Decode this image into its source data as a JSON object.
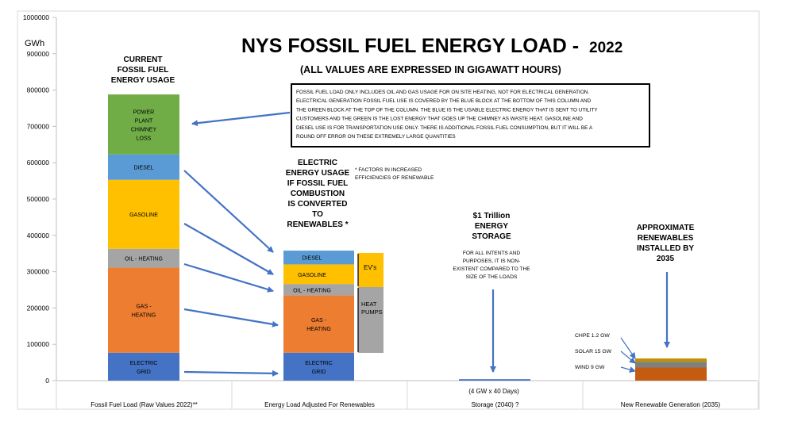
{
  "chart_data": {
    "type": "bar",
    "title": "NYS FOSSIL FUEL ENERGY LOAD -",
    "title_year": "2022",
    "subtitle": "(ALL VALUES ARE EXPRESSED IN GIGAWATT HOURS)",
    "ylabel": "GWh",
    "ylim": [
      0,
      1000000
    ],
    "yticks": [
      "0",
      "100000",
      "200000",
      "300000",
      "400000",
      "500000",
      "600000",
      "700000",
      "800000",
      "900000",
      "1000000"
    ],
    "grid": false,
    "categories": [
      "Fossil Fuel Load (Raw Values 2022)**",
      "Energy Load Adjusted For Renewables",
      "Storage (2040) ?",
      "New Renewable Generation (2035)"
    ],
    "category_note": "(4 GW x 40 Days)",
    "series": [
      {
        "name": "ELECTRIC GRID",
        "color": "#4472c4",
        "values": [
          77000,
          77000,
          null,
          null
        ]
      },
      {
        "name": "GAS - HEATING",
        "color": "#ed7d31",
        "values": [
          234000,
          158000,
          null,
          null
        ]
      },
      {
        "name": "OIL - HEATING",
        "color": "#a5a5a5",
        "values": [
          52000,
          31000,
          null,
          null
        ]
      },
      {
        "name": "GASOLINE",
        "color": "#ffc000",
        "values": [
          190000,
          54000,
          null,
          null
        ]
      },
      {
        "name": "DIESEL",
        "color": "#5b9bd5",
        "values": [
          70000,
          38000,
          null,
          null
        ]
      },
      {
        "name": "POWER PLANT CHIMNEY LOSS",
        "color": "#70ad47",
        "values": [
          165000,
          null,
          null,
          null
        ]
      },
      {
        "name": "Storage",
        "color": "#4472c4",
        "values": [
          null,
          null,
          4000,
          null
        ]
      },
      {
        "name": "WIND 9 GW",
        "color": "#c55a11",
        "values": [
          null,
          null,
          null,
          36000
        ]
      },
      {
        "name": "SOLAR 15 GW",
        "color": "#7f7f7f",
        "values": [
          null,
          null,
          null,
          16000
        ]
      },
      {
        "name": "CHPE 1.2 GW",
        "color": "#bf9000",
        "values": [
          null,
          null,
          null,
          9000
        ]
      }
    ],
    "segment_labels": {
      "electric": [
        "ELECTRIC",
        "GRID"
      ],
      "gas": [
        "GAS -",
        "HEATING"
      ],
      "oil": "OIL - HEATING",
      "gasoline": "GASOLINE",
      "diesel": "DIESEL",
      "chimney": [
        "POWER",
        "PLANT",
        "CHIMNEY",
        "LOSS"
      ]
    },
    "annotations": {
      "current_usage": [
        "CURRENT",
        "FOSSIL FUEL",
        "ENERGY USAGE"
      ],
      "note_box": [
        "FOSSIL FUEL LOAD  ONLY INCLUDES  OIL AND GAS USAGE FOR ON SITE HEATING,  NOT FOR ELECTRICAL GENERATION.",
        "ELECTRICAL GENERATION  FOSSIL FUEL USE IS COVERED  BY THE BLUE  BLOCK  AT THE BOTTOM  OF THIS COLUMN  AND",
        "THE GREEN BLOCK  AT THE TOP OF THE COLUMN.  THE BLUE  IS THE USABLE ELECTRIC ENERGY THAT IS SENT TO UTILITY",
        "CUSTOMERS   AND THE GREEN IS THE LOST  ENERGY THAT GOES UP THE CHIMNEY  AS WASTE HEAT.  GASOLINE  AND",
        "DIESEL USE IS FOR TRANSPORTATION  USE ONLY.   THERE IS ADDITIONAL  FOSSIL FUEL CONSUMPTION,   BUT IT WILL BE A",
        "ROUND  OFF ERROR ON THESE EXTREMELY LARGE QUANTITIES"
      ],
      "electric_usage": [
        "ELECTRIC",
        "ENERGY USAGE",
        "IF FOSSIL FUEL",
        "COMBUSTION",
        "IS CONVERTED",
        "TO",
        "RENEWABLES *"
      ],
      "factors_note": [
        "* FACTORS IN INCREASED",
        "EFFICIENCIES  OF RENEWABLE"
      ],
      "evs": "EV's",
      "heat_pumps": [
        "HEAT",
        "PUMPS"
      ],
      "storage_title": [
        "$1 Trillion",
        "ENERGY",
        "STORAGE"
      ],
      "storage_note": [
        "FOR ALL INTENTS  AND",
        "PURPOSES,  IT IS NON-",
        "EXISTENT  COMPARED  TO THE",
        "SIZE OF THE LOADS"
      ],
      "renewables_title": [
        "APPROXIMATE",
        "RENEWABLES",
        "INSTALLED BY",
        "2035"
      ],
      "chpe": "CHPE  1.2 GW",
      "solar": "SOLAR   15 GW",
      "wind": "WIND     9 GW"
    }
  }
}
